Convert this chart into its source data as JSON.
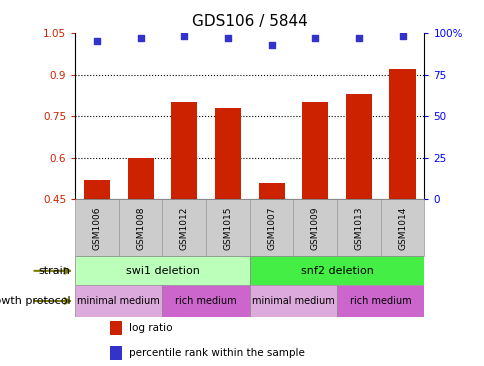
{
  "title": "GDS106 / 5844",
  "samples": [
    "GSM1006",
    "GSM1008",
    "GSM1012",
    "GSM1015",
    "GSM1007",
    "GSM1009",
    "GSM1013",
    "GSM1014"
  ],
  "log_ratio": [
    0.52,
    0.6,
    0.8,
    0.78,
    0.51,
    0.8,
    0.83,
    0.92
  ],
  "percentile_rank": [
    95,
    97,
    98,
    97,
    93,
    97,
    97,
    98
  ],
  "ylim_left": [
    0.45,
    1.05
  ],
  "ylim_right": [
    0,
    100
  ],
  "yticks_left": [
    0.45,
    0.6,
    0.75,
    0.9,
    1.05
  ],
  "yticks_right": [
    0,
    25,
    50,
    75,
    100
  ],
  "ytick_labels_left": [
    "0.45",
    "0.6",
    "0.75",
    "0.9",
    "1.05"
  ],
  "ytick_labels_right": [
    "0",
    "25",
    "50",
    "75",
    "100%"
  ],
  "bar_color": "#cc2200",
  "dot_color": "#3333cc",
  "strain_groups": [
    {
      "label": "swi1 deletion",
      "start": 0,
      "end": 4,
      "color": "#bbffbb"
    },
    {
      "label": "snf2 deletion",
      "start": 4,
      "end": 8,
      "color": "#44ee44"
    }
  ],
  "growth_groups": [
    {
      "label": "minimal medium",
      "start": 0,
      "end": 2,
      "color": "#ddaadd"
    },
    {
      "label": "rich medium",
      "start": 2,
      "end": 4,
      "color": "#cc66cc"
    },
    {
      "label": "minimal medium",
      "start": 4,
      "end": 6,
      "color": "#ddaadd"
    },
    {
      "label": "rich medium",
      "start": 6,
      "end": 8,
      "color": "#cc66cc"
    }
  ],
  "strain_label": "strain",
  "growth_label": "growth protocol",
  "legend_items": [
    {
      "label": "log ratio",
      "color": "#cc2200"
    },
    {
      "label": "percentile rank within the sample",
      "color": "#3333cc"
    }
  ],
  "dotted_yticks": [
    0.6,
    0.75,
    0.9
  ],
  "bar_width": 0.6,
  "sample_box_color": "#cccccc",
  "sample_box_edge": "#999999"
}
